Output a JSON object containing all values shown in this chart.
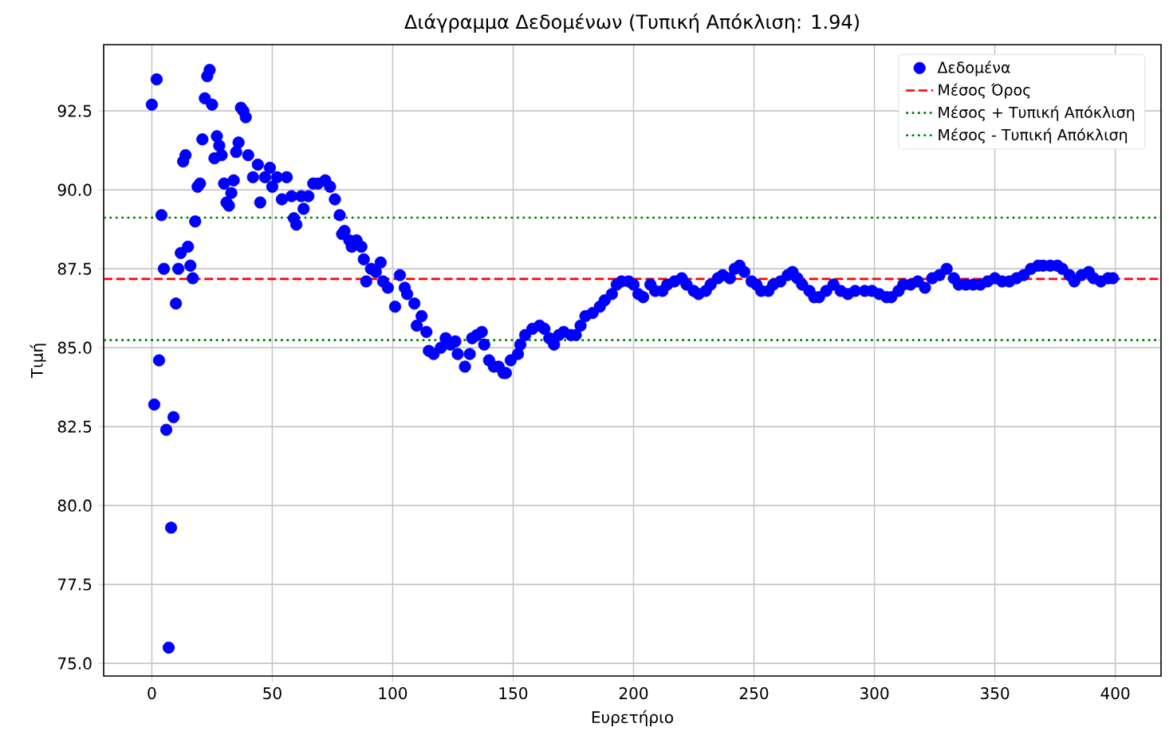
{
  "chart_data": {
    "type": "scatter",
    "title": "Διάγραμμα Δεδομένων (Τυπική Απόκλιση: 1.94)",
    "xlabel": "Ευρετήριο",
    "ylabel": "Τιμή",
    "xlim": [
      -20,
      419
    ],
    "ylim": [
      74.6,
      94.6
    ],
    "xticks": [
      0,
      50,
      100,
      150,
      200,
      250,
      300,
      350,
      400
    ],
    "yticks": [
      {
        "value": 75,
        "label": "75.0"
      },
      {
        "value": 77.5,
        "label": "77.5"
      },
      {
        "value": 80,
        "label": "80.0"
      },
      {
        "value": 82.5,
        "label": "82.5"
      },
      {
        "value": 85,
        "label": "85.0"
      },
      {
        "value": 87.5,
        "label": "87.5"
      },
      {
        "value": 90,
        "label": "90.0"
      },
      {
        "value": 92.5,
        "label": "92.5"
      }
    ],
    "grid": true,
    "legend": "top right",
    "series": [
      {
        "name": "Δεδομένα",
        "color": "#0000ff",
        "x": [
          0,
          1,
          2,
          3,
          4,
          5,
          6,
          7,
          8,
          9,
          10,
          11,
          12,
          13,
          14,
          15,
          16,
          17,
          18,
          19,
          20,
          21,
          22,
          23,
          24,
          25,
          26,
          27,
          28,
          29,
          30,
          31,
          32,
          33,
          34,
          35,
          36,
          37,
          38,
          39,
          40,
          42,
          44,
          45,
          47,
          49,
          50,
          52,
          54,
          56,
          58,
          59,
          60,
          62,
          63,
          65,
          67,
          69,
          72,
          74,
          76,
          78,
          79,
          80,
          82,
          83,
          85,
          87,
          88,
          89,
          91,
          93,
          95,
          96,
          98,
          101,
          103,
          105,
          106,
          109,
          110,
          112,
          114,
          115,
          117,
          120,
          122,
          124,
          126,
          127,
          130,
          132,
          133,
          135,
          137,
          138,
          140,
          142,
          144,
          146,
          147,
          149,
          152,
          153,
          155,
          158,
          161,
          163,
          165,
          167,
          169,
          171,
          174,
          176,
          178,
          180,
          183,
          186,
          188,
          191,
          193,
          195,
          198,
          200,
          202,
          204,
          207,
          209,
          212,
          214,
          217,
          220,
          222,
          225,
          227,
          230,
          232,
          235,
          237,
          240,
          242,
          244,
          246,
          249,
          251,
          253,
          256,
          258,
          261,
          264,
          266,
          268,
          270,
          273,
          275,
          277,
          280,
          283,
          286,
          289,
          292,
          296,
          299,
          302,
          305,
          307,
          310,
          312,
          315,
          318,
          321,
          324,
          327,
          330,
          333,
          335,
          338,
          341,
          344,
          347,
          350,
          353,
          356,
          359,
          362,
          365,
          368,
          370,
          373,
          376,
          378,
          381,
          383,
          386,
          389,
          391,
          394,
          397,
          399
        ],
        "values": [
          92.7,
          83.2,
          93.5,
          84.6,
          89.2,
          87.5,
          82.4,
          75.5,
          79.3,
          82.8,
          86.4,
          87.5,
          88.0,
          90.9,
          91.1,
          88.2,
          87.6,
          87.2,
          89.0,
          90.1,
          90.2,
          91.6,
          92.9,
          93.6,
          93.8,
          92.7,
          91.0,
          91.7,
          91.4,
          91.1,
          90.2,
          89.6,
          89.5,
          89.9,
          90.3,
          91.2,
          91.5,
          92.6,
          92.5,
          92.3,
          91.1,
          90.4,
          90.8,
          89.6,
          90.4,
          90.7,
          90.1,
          90.4,
          89.7,
          90.4,
          89.8,
          89.1,
          88.9,
          89.8,
          89.4,
          89.8,
          90.2,
          90.2,
          90.3,
          90.1,
          89.7,
          89.2,
          88.6,
          88.7,
          88.4,
          88.2,
          88.4,
          88.2,
          87.8,
          87.1,
          87.5,
          87.4,
          87.7,
          87.1,
          86.9,
          86.3,
          87.3,
          86.9,
          86.7,
          86.4,
          85.7,
          86.0,
          85.5,
          84.9,
          84.8,
          85.0,
          85.3,
          85.1,
          85.2,
          84.8,
          84.4,
          84.8,
          85.3,
          85.4,
          85.5,
          85.1,
          84.6,
          84.4,
          84.4,
          84.2,
          84.2,
          84.6,
          84.8,
          85.1,
          85.4,
          85.6,
          85.7,
          85.6,
          85.3,
          85.1,
          85.4,
          85.5,
          85.4,
          85.4,
          85.7,
          86.0,
          86.1,
          86.3,
          86.5,
          86.7,
          87.0,
          87.1,
          87.1,
          87.0,
          86.7,
          86.6,
          87.0,
          86.8,
          86.8,
          87.0,
          87.1,
          87.2,
          87.0,
          86.8,
          86.7,
          86.8,
          87.0,
          87.2,
          87.3,
          87.2,
          87.5,
          87.6,
          87.4,
          87.1,
          87.0,
          86.8,
          86.8,
          87.0,
          87.1,
          87.3,
          87.4,
          87.2,
          87.0,
          86.8,
          86.6,
          86.6,
          86.8,
          87.0,
          86.8,
          86.7,
          86.8,
          86.8,
          86.8,
          86.7,
          86.6,
          86.6,
          86.8,
          87.0,
          87.0,
          87.1,
          86.9,
          87.2,
          87.3,
          87.5,
          87.2,
          87.0,
          87.0,
          87.0,
          87.0,
          87.1,
          87.2,
          87.1,
          87.1,
          87.2,
          87.3,
          87.5,
          87.6,
          87.6,
          87.6,
          87.6,
          87.5,
          87.3,
          87.1,
          87.3,
          87.4,
          87.2,
          87.1,
          87.2,
          87.2
        ]
      }
    ],
    "ref_lines": [
      {
        "axis": "y",
        "value": 87.18,
        "label": "Μέσος Όρος",
        "color": "#ff0000",
        "line_style": "dashed"
      },
      {
        "axis": "y",
        "value": 89.12,
        "label": "Μέσος + Τυπική Απόκλιση",
        "color": "#008000",
        "line_style": "dotted"
      },
      {
        "axis": "y",
        "value": 85.24,
        "label": "Μέσος - Τυπική Απόκλιση",
        "color": "#008000",
        "line_style": "dotted"
      }
    ]
  }
}
